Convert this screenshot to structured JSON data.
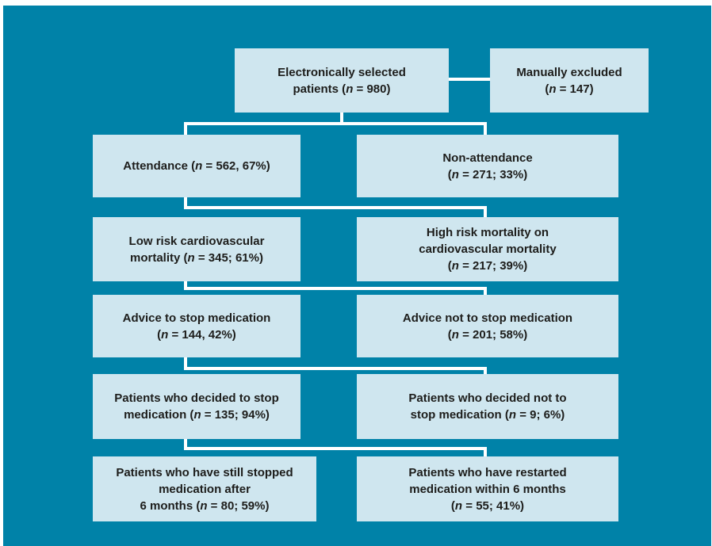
{
  "colors": {
    "panel": "#0082a8",
    "box_fill": "#cfe6ef",
    "connector": "#ffffff",
    "text": "#1d1d1b"
  },
  "nodes": {
    "selected": {
      "l1": "Electronically selected",
      "l2a": "patients (",
      "n": "n",
      "l2b": " = 980)"
    },
    "excluded": {
      "l1": "Manually excluded",
      "l2a": "(",
      "n": "n",
      "l2b": " = 147)"
    },
    "attendance": {
      "a": "Attendance (",
      "n": "n",
      "b": " = 562, 67%)"
    },
    "non_attendance": {
      "l1": "Non-attendance",
      "l2a": "(",
      "n": "n",
      "l2b": " = 271; 33%)"
    },
    "low_risk": {
      "l1": "Low risk cardiovascular",
      "l2a": "mortality (",
      "n": "n",
      "l2b": " = 345; 61%)"
    },
    "high_risk": {
      "l1": "High risk mortality on",
      "l2": "cardiovascular mortality",
      "l3a": "(",
      "n": "n",
      "l3b": " = 217; 39%)"
    },
    "advice_stop": {
      "l1": "Advice to stop medication",
      "l2a": "(",
      "n": "n",
      "l2b": " = 144, 42%)"
    },
    "advice_not_stop": {
      "l1": "Advice not to stop medication",
      "l2a": "(",
      "n": "n",
      "l2b": " = 201; 58%)"
    },
    "decided_stop": {
      "l1": "Patients who decided to stop",
      "l2a": "medication (",
      "n": "n",
      "l2b": " = 135; 94%)"
    },
    "decided_not_stop": {
      "l1": "Patients who decided not to",
      "l2a": "stop medication (",
      "n": "n",
      "l2b": " = 9; 6%)"
    },
    "still_stopped": {
      "l1": "Patients who have still stopped",
      "l2": "medication after",
      "l3a": "6 months (",
      "n": "n",
      "l3b": " = 80; 59%)"
    },
    "restarted": {
      "l1": "Patients who have restarted",
      "l2": "medication within 6 months",
      "l3a": "(",
      "n": "n",
      "l3b": " = 55; 41%)"
    }
  }
}
